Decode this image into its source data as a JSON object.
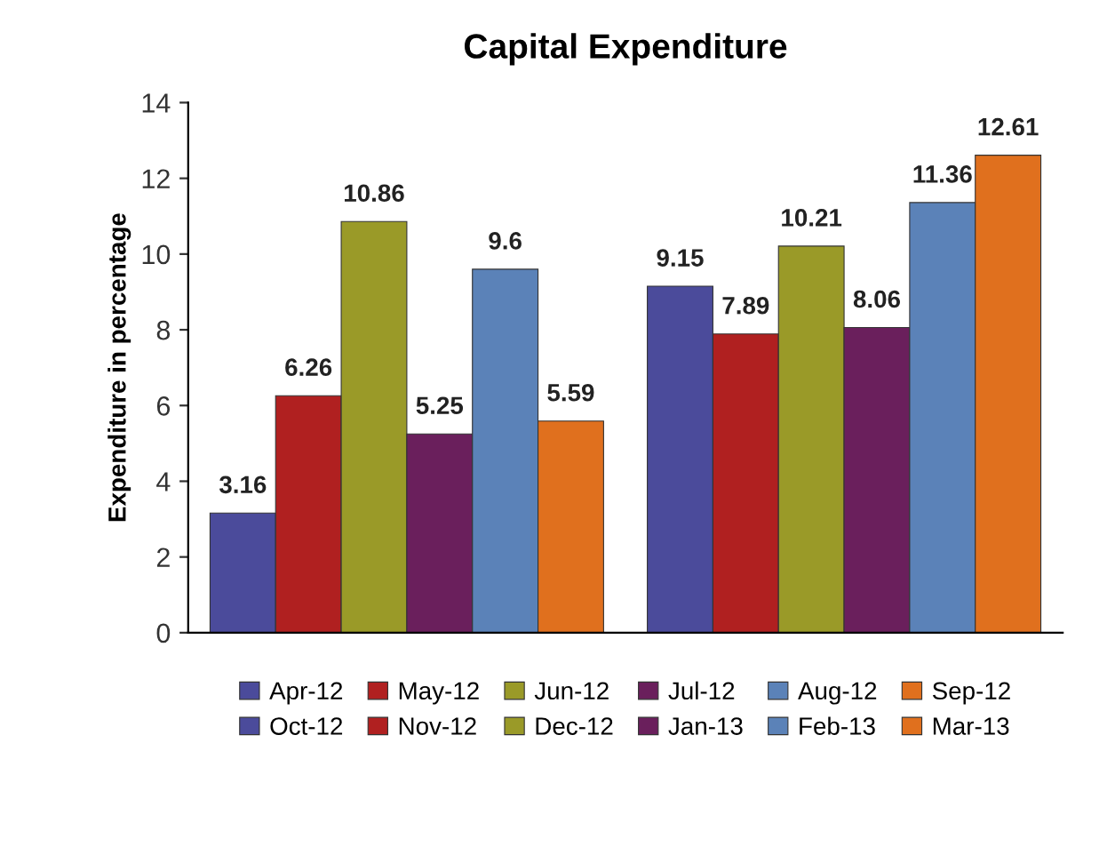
{
  "chart_data": {
    "type": "bar",
    "title": "Capital Expenditure",
    "ylabel": "Expenditure in percentage",
    "categories": [
      null,
      null
    ],
    "series": [
      {
        "name": "Apr-12",
        "color": "#4b4b9b",
        "values": [
          3.16,
          null
        ]
      },
      {
        "name": "May-12",
        "color": "#b02020",
        "values": [
          6.26,
          null
        ]
      },
      {
        "name": "Jun-12",
        "color": "#9a9a28",
        "values": [
          10.86,
          null
        ]
      },
      {
        "name": "Jul-12",
        "color": "#6a1f5c",
        "values": [
          5.25,
          null
        ]
      },
      {
        "name": "Aug-12",
        "color": "#5b82b8",
        "values": [
          9.6,
          null
        ]
      },
      {
        "name": "Sep-12",
        "color": "#e0701e",
        "values": [
          5.59,
          null
        ]
      },
      {
        "name": "Oct-12",
        "color": "#4b4b9b",
        "values": [
          null,
          9.15
        ]
      },
      {
        "name": "Nov-12",
        "color": "#b02020",
        "values": [
          null,
          7.89
        ]
      },
      {
        "name": "Dec-12",
        "color": "#9a9a28",
        "values": [
          null,
          10.21
        ]
      },
      {
        "name": "Jan-13",
        "color": "#6a1f5c",
        "values": [
          null,
          8.06
        ]
      },
      {
        "name": "Feb-13",
        "color": "#5b82b8",
        "values": [
          null,
          11.36
        ]
      },
      {
        "name": "Mar-13",
        "color": "#e0701e",
        "values": [
          null,
          12.61
        ]
      }
    ],
    "ylim": [
      0,
      14
    ],
    "yticks": [
      0,
      2,
      4,
      6,
      8,
      10,
      12,
      14
    ],
    "grid": false,
    "legend": "bottom",
    "data_labels": true
  }
}
